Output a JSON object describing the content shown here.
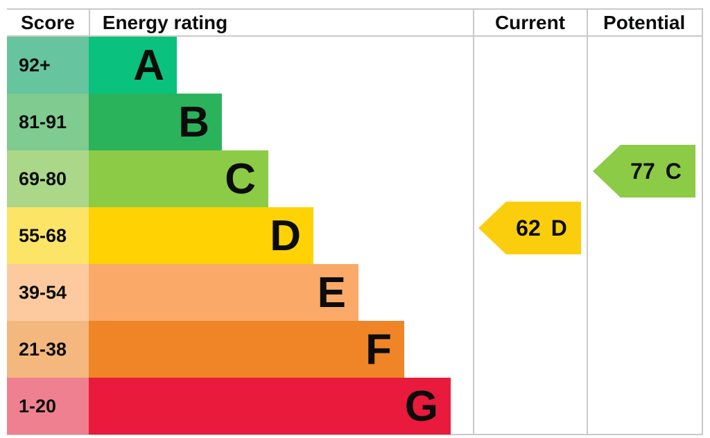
{
  "header": {
    "score": "Score",
    "energy_rating": "Energy rating",
    "current": "Current",
    "potential": "Potential"
  },
  "bands": [
    {
      "letter": "A",
      "score": "92+",
      "bar_color": "#0bc17e",
      "score_color": "#66c49f"
    },
    {
      "letter": "B",
      "score": "81-91",
      "bar_color": "#2ab35a",
      "score_color": "#7fcb90"
    },
    {
      "letter": "C",
      "score": "69-80",
      "bar_color": "#8ccb46",
      "score_color": "#aad788"
    },
    {
      "letter": "D",
      "score": "55-68",
      "bar_color": "#ffd203",
      "score_color": "#fce467"
    },
    {
      "letter": "E",
      "score": "39-54",
      "bar_color": "#faa968",
      "score_color": "#fcca9e"
    },
    {
      "letter": "F",
      "score": "21-38",
      "bar_color": "#ef8526",
      "score_color": "#f4b77d"
    },
    {
      "letter": "G",
      "score": "1-20",
      "bar_color": "#e91a3c",
      "score_color": "#ef8090"
    }
  ],
  "current": {
    "value": "62",
    "band": "D",
    "color": "#fbce0d"
  },
  "potential": {
    "value": "77",
    "band": "C",
    "color": "#8ccb46"
  },
  "chart_data": {
    "type": "bar",
    "title": "Energy rating",
    "columns": [
      "Score",
      "Energy rating",
      "Current",
      "Potential"
    ],
    "categories": [
      "A",
      "B",
      "C",
      "D",
      "E",
      "F",
      "G"
    ],
    "score_ranges": [
      "92+",
      "81-91",
      "69-80",
      "55-68",
      "39-54",
      "21-38",
      "1-20"
    ],
    "band_colors": [
      "#0bc17e",
      "#2ab35a",
      "#8ccb46",
      "#ffd203",
      "#faa968",
      "#ef8526",
      "#e91a3c"
    ],
    "current_rating": {
      "value": 62,
      "band": "D"
    },
    "potential_rating": {
      "value": 77,
      "band": "C"
    },
    "legend_position": "none",
    "grid": false
  }
}
